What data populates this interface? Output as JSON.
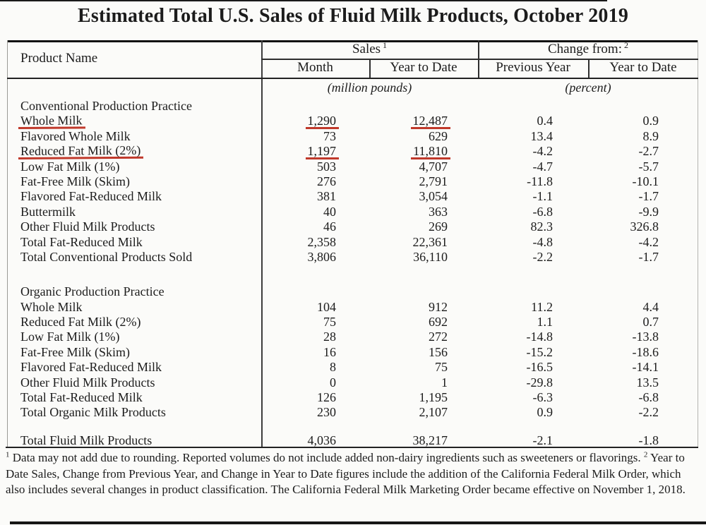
{
  "title": "Estimated Total U.S. Sales of Fluid Milk Products, October 2019",
  "header": {
    "product_col": "Product Name",
    "sales_group": "Sales",
    "sales_sup": "1",
    "change_group": "Change from:",
    "change_sup": "2",
    "sub_month": "Month",
    "sub_ytd_sales": "Year to Date",
    "sub_prev_year": "Previous Year",
    "sub_ytd_change": "Year to Date",
    "units_sales": "(million pounds)",
    "units_change": "(percent)"
  },
  "rows": [
    {
      "t": "section",
      "name": "Conventional Production Practice"
    },
    {
      "t": "data",
      "name": "Whole Milk",
      "month": "1,290",
      "ytd": "12,487",
      "prev": "0.4",
      "chg": "0.9",
      "u": true
    },
    {
      "t": "data",
      "name": "Flavored Whole Milk",
      "month": "73",
      "ytd": "629",
      "prev": "13.4",
      "chg": "8.9"
    },
    {
      "t": "data",
      "name": "Reduced Fat Milk (2%)",
      "month": "1,197",
      "ytd": "11,810",
      "prev": "-4.2",
      "chg": "-2.7",
      "u": true
    },
    {
      "t": "data",
      "name": "Low Fat Milk (1%)",
      "month": "503",
      "ytd": "4,707",
      "prev": "-4.7",
      "chg": "-5.7"
    },
    {
      "t": "data",
      "name": "Fat-Free Milk (Skim)",
      "month": "276",
      "ytd": "2,791",
      "prev": "-11.8",
      "chg": "-10.1"
    },
    {
      "t": "data",
      "name": "Flavored Fat-Reduced Milk",
      "month": "381",
      "ytd": "3,054",
      "prev": "-1.1",
      "chg": "-1.7"
    },
    {
      "t": "data",
      "name": "Buttermilk",
      "month": "40",
      "ytd": "363",
      "prev": "-6.8",
      "chg": "-9.9"
    },
    {
      "t": "data",
      "name": "Other Fluid Milk Products",
      "month": "46",
      "ytd": "269",
      "prev": "82.3",
      "chg": "326.8"
    },
    {
      "t": "data",
      "name": "Total Fat-Reduced Milk",
      "month": "2,358",
      "ytd": "22,361",
      "prev": "-4.8",
      "chg": "-4.2"
    },
    {
      "t": "data",
      "name": "Total Conventional Products Sold",
      "month": "3,806",
      "ytd": "36,110",
      "prev": "-2.2",
      "chg": "-1.7"
    },
    {
      "t": "spacer",
      "size": "lg"
    },
    {
      "t": "section",
      "name": "Organic Production Practice"
    },
    {
      "t": "data",
      "name": "Whole Milk",
      "month": "104",
      "ytd": "912",
      "prev": "11.2",
      "chg": "4.4"
    },
    {
      "t": "data",
      "name": "Reduced Fat Milk (2%)",
      "month": "75",
      "ytd": "692",
      "prev": "1.1",
      "chg": "0.7"
    },
    {
      "t": "data",
      "name": "Low Fat Milk (1%)",
      "month": "28",
      "ytd": "272",
      "prev": "-14.8",
      "chg": "-13.8"
    },
    {
      "t": "data",
      "name": "Fat-Free Milk (Skim)",
      "month": "16",
      "ytd": "156",
      "prev": "-15.2",
      "chg": "-18.6"
    },
    {
      "t": "data",
      "name": "Flavored Fat-Reduced Milk",
      "month": "8",
      "ytd": "75",
      "prev": "-16.5",
      "chg": "-14.1"
    },
    {
      "t": "data",
      "name": "Other Fluid Milk Products",
      "month": "0",
      "ytd": "1",
      "prev": "-29.8",
      "chg": "13.5"
    },
    {
      "t": "data",
      "name": "Total Fat-Reduced Milk",
      "month": "126",
      "ytd": "1,195",
      "prev": "-6.3",
      "chg": "-6.8"
    },
    {
      "t": "data",
      "name": "Total Organic Milk Products",
      "month": "230",
      "ytd": "2,107",
      "prev": "0.9",
      "chg": "-2.2"
    },
    {
      "t": "spacer",
      "size": "sm"
    },
    {
      "t": "data",
      "name": "Total Fluid Milk Products",
      "month": "4,036",
      "ytd": "38,217",
      "prev": "-2.1",
      "chg": "-1.8"
    }
  ],
  "footnote": {
    "sup1": "1",
    "part1": "Data may not add due to rounding. Reported volumes do not include added non-dairy ingredients such as sweeteners or flavorings.",
    "sup2": "2",
    "part2": "Year to Date Sales, Change from Previous Year, and Change in Year to Date figures include the addition of the California Federal Milk Order, which also includes several changes in product classification. The California Federal Milk Marketing Order became effective on November 1, 2018."
  },
  "colors": {
    "annotation_red": "#c0392b"
  }
}
